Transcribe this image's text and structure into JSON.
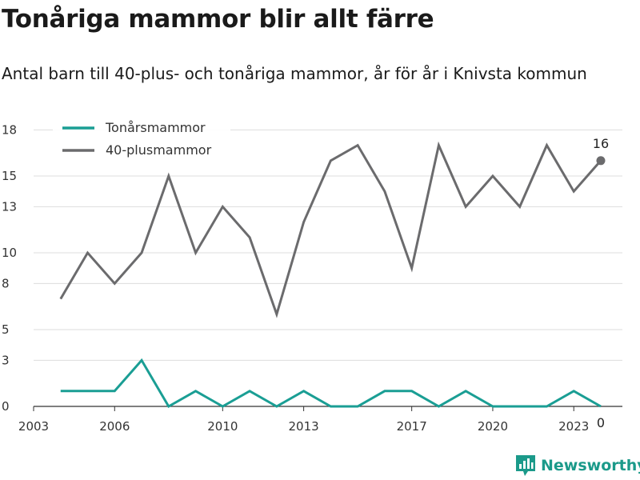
{
  "header": {
    "title": "Tonåriga mammor blir allt färre",
    "subtitle": "Antal barn till 40-plus- och tonåriga mammor, år för år i Knivsta kommun"
  },
  "chart_data": {
    "type": "line",
    "title": "Tonåriga mammor blir allt färre",
    "subtitle": "Antal barn till 40-plus- och tonåriga mammor, år för år i Knivsta kommun",
    "xlabel": "",
    "ylabel": "",
    "x": [
      2004,
      2005,
      2006,
      2007,
      2008,
      2009,
      2010,
      2011,
      2012,
      2013,
      2014,
      2015,
      2016,
      2017,
      2018,
      2019,
      2020,
      2021,
      2022,
      2023,
      2024
    ],
    "x_ticks": [
      "2003",
      "2006",
      "2010",
      "2013",
      "2017",
      "2020",
      "2023"
    ],
    "y_ticks": [
      "0",
      "3",
      "5",
      "8",
      "10",
      "13",
      "15",
      "18"
    ],
    "xlim": [
      2003,
      2024.8
    ],
    "ylim": [
      0,
      17.5
    ],
    "grid": "horizontal",
    "legend_position": "top-left",
    "series": [
      {
        "name": "Tonårsmammor",
        "color": "#1a9e94",
        "values": [
          1,
          1,
          1,
          3,
          0,
          1,
          0,
          1,
          0,
          1,
          0,
          0,
          1,
          1,
          0,
          1,
          0,
          0,
          0,
          1,
          0
        ],
        "end_label": "0"
      },
      {
        "name": "40-plusmammor",
        "color": "#6b6b6d",
        "values": [
          7,
          10,
          8,
          10,
          15,
          10,
          13,
          11,
          6,
          12,
          16,
          17,
          14,
          9,
          17,
          13,
          15,
          13,
          17,
          14,
          16
        ],
        "end_label": "16"
      }
    ]
  },
  "branding": {
    "name": "Newsworthy",
    "icon": "newsworthy-logo-icon",
    "color": "#1b9a8a"
  }
}
